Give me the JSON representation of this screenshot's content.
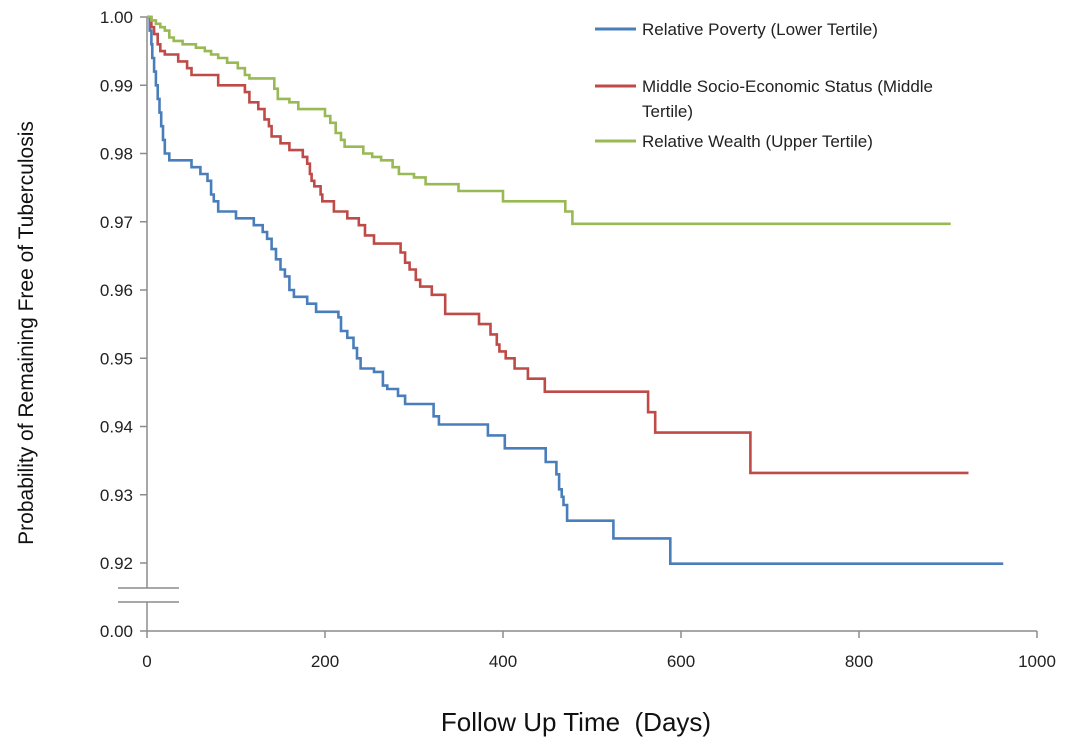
{
  "chart_data": {
    "type": "line",
    "title": "",
    "xlabel": "Follow Up Time  (Days)",
    "ylabel": "Probability of Remaining Free of Tuberculosis",
    "xlim": [
      0,
      1000
    ],
    "x_ticks": [
      "0",
      "200",
      "400",
      "600",
      "800",
      "1000"
    ],
    "y_ticks": [
      "0.00",
      "0.92",
      "0.93",
      "0.94",
      "0.95",
      "0.96",
      "0.97",
      "0.98",
      "0.99",
      "1.00"
    ],
    "y_axis_break": "between 0.00 and 0.92",
    "ylim": [
      0.92,
      1.0
    ],
    "grid": false,
    "legend_position": "top-right",
    "series": [
      {
        "name": "Relative Poverty (Lower Tertile)",
        "color": "#4a7ebb",
        "step": true,
        "points": [
          [
            0,
            1.0
          ],
          [
            3,
            0.998
          ],
          [
            5,
            0.996
          ],
          [
            6,
            0.994
          ],
          [
            8,
            0.992
          ],
          [
            10,
            0.99
          ],
          [
            12,
            0.988
          ],
          [
            14,
            0.986
          ],
          [
            16,
            0.984
          ],
          [
            18,
            0.982
          ],
          [
            20,
            0.98
          ],
          [
            25,
            0.979
          ],
          [
            50,
            0.978
          ],
          [
            60,
            0.977
          ],
          [
            68,
            0.976
          ],
          [
            72,
            0.974
          ],
          [
            75,
            0.973
          ],
          [
            80,
            0.9715
          ],
          [
            100,
            0.9705
          ],
          [
            120,
            0.9695
          ],
          [
            130,
            0.9685
          ],
          [
            135,
            0.9675
          ],
          [
            140,
            0.966
          ],
          [
            145,
            0.9645
          ],
          [
            150,
            0.963
          ],
          [
            155,
            0.962
          ],
          [
            160,
            0.96
          ],
          [
            165,
            0.959
          ],
          [
            180,
            0.958
          ],
          [
            190,
            0.9568
          ],
          [
            215,
            0.956
          ],
          [
            218,
            0.954
          ],
          [
            225,
            0.953
          ],
          [
            232,
            0.9515
          ],
          [
            236,
            0.95
          ],
          [
            240,
            0.9485
          ],
          [
            255,
            0.948
          ],
          [
            265,
            0.946
          ],
          [
            270,
            0.9455
          ],
          [
            282,
            0.9445
          ],
          [
            290,
            0.9433
          ],
          [
            322,
            0.9415
          ],
          [
            328,
            0.9403
          ],
          [
            383,
            0.9387
          ],
          [
            402,
            0.9368
          ],
          [
            448,
            0.9348
          ],
          [
            460,
            0.933
          ],
          [
            463,
            0.9308
          ],
          [
            466,
            0.9297
          ],
          [
            468,
            0.9285
          ],
          [
            472,
            0.9262
          ],
          [
            524,
            0.9236
          ],
          [
            588,
            0.9199
          ],
          [
            962,
            0.9199
          ]
        ]
      },
      {
        "name": "Middle Socio-Economic Status (Middle Tertile)",
        "color": "#be4b48",
        "step": true,
        "points": [
          [
            0,
            1.0
          ],
          [
            5,
            0.9985
          ],
          [
            8,
            0.9975
          ],
          [
            12,
            0.996
          ],
          [
            15,
            0.995
          ],
          [
            20,
            0.9945
          ],
          [
            35,
            0.9935
          ],
          [
            45,
            0.9925
          ],
          [
            50,
            0.9915
          ],
          [
            80,
            0.99
          ],
          [
            110,
            0.989
          ],
          [
            115,
            0.9875
          ],
          [
            125,
            0.9865
          ],
          [
            132,
            0.985
          ],
          [
            137,
            0.984
          ],
          [
            140,
            0.9825
          ],
          [
            150,
            0.9815
          ],
          [
            160,
            0.9805
          ],
          [
            175,
            0.9795
          ],
          [
            180,
            0.9785
          ],
          [
            183,
            0.977
          ],
          [
            185,
            0.976
          ],
          [
            188,
            0.9752
          ],
          [
            195,
            0.974
          ],
          [
            197,
            0.973
          ],
          [
            210,
            0.9715
          ],
          [
            225,
            0.9705
          ],
          [
            238,
            0.9695
          ],
          [
            245,
            0.968
          ],
          [
            255,
            0.9668
          ],
          [
            285,
            0.9655
          ],
          [
            290,
            0.964
          ],
          [
            295,
            0.963
          ],
          [
            302,
            0.9615
          ],
          [
            307,
            0.9605
          ],
          [
            320,
            0.9593
          ],
          [
            335,
            0.9565
          ],
          [
            373,
            0.955
          ],
          [
            386,
            0.9535
          ],
          [
            393,
            0.952
          ],
          [
            396,
            0.951
          ],
          [
            403,
            0.95
          ],
          [
            413,
            0.9485
          ],
          [
            428,
            0.947
          ],
          [
            447,
            0.9451
          ],
          [
            563,
            0.9421
          ],
          [
            571,
            0.9391
          ],
          [
            678,
            0.9332
          ],
          [
            923,
            0.9332
          ]
        ]
      },
      {
        "name": "Relative Wealth (Upper Tertile)",
        "color": "#98b954",
        "step": true,
        "points": [
          [
            0,
            1.0
          ],
          [
            5,
            0.9995
          ],
          [
            10,
            0.999
          ],
          [
            15,
            0.9985
          ],
          [
            20,
            0.998
          ],
          [
            25,
            0.997
          ],
          [
            30,
            0.9965
          ],
          [
            40,
            0.996
          ],
          [
            55,
            0.9955
          ],
          [
            65,
            0.995
          ],
          [
            72,
            0.9945
          ],
          [
            80,
            0.994
          ],
          [
            90,
            0.9933
          ],
          [
            102,
            0.9925
          ],
          [
            110,
            0.9915
          ],
          [
            115,
            0.991
          ],
          [
            143,
            0.9895
          ],
          [
            147,
            0.988
          ],
          [
            160,
            0.9875
          ],
          [
            170,
            0.9865
          ],
          [
            200,
            0.9855
          ],
          [
            206,
            0.9845
          ],
          [
            212,
            0.983
          ],
          [
            218,
            0.982
          ],
          [
            222,
            0.981
          ],
          [
            243,
            0.98
          ],
          [
            253,
            0.9795
          ],
          [
            263,
            0.979
          ],
          [
            276,
            0.978
          ],
          [
            283,
            0.977
          ],
          [
            300,
            0.9765
          ],
          [
            313,
            0.9755
          ],
          [
            350,
            0.9745
          ],
          [
            400,
            0.973
          ],
          [
            470,
            0.9715
          ],
          [
            478,
            0.9697
          ],
          [
            903,
            0.9697
          ]
        ]
      }
    ]
  }
}
